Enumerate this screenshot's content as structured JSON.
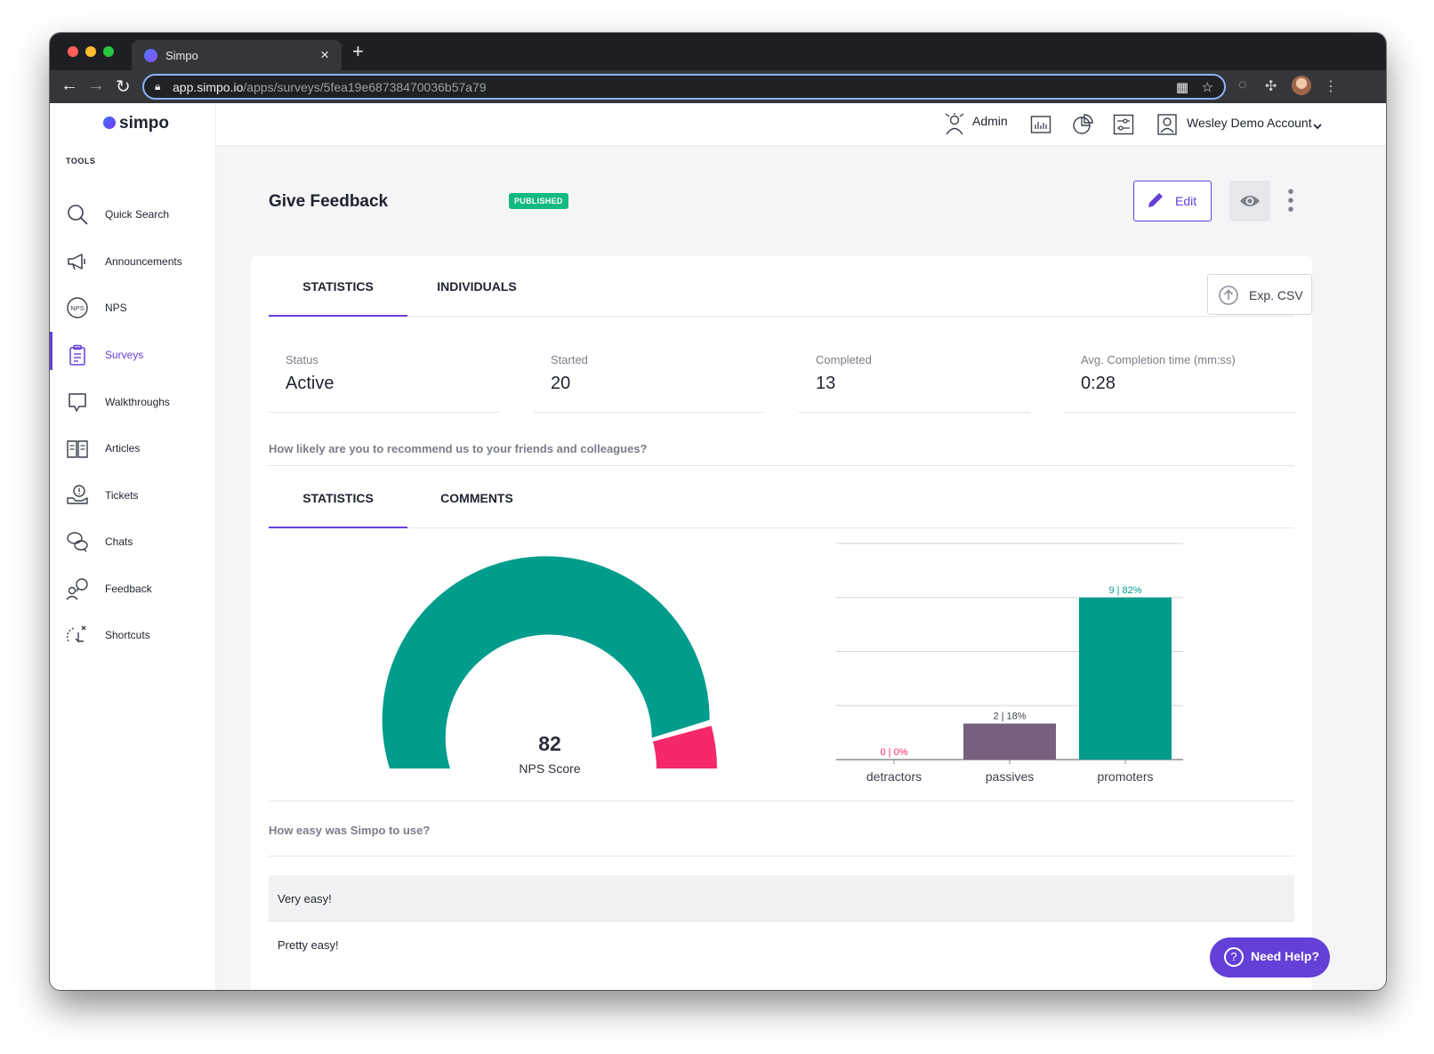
{
  "browser": {
    "tab_title": "Simpo",
    "url_host": "app.simpo.io",
    "url_path": "/apps/surveys/5fea19e68738470036b57a79"
  },
  "sidebar": {
    "logo_text": "simpo",
    "section_label": "TOOLS",
    "items": [
      {
        "label": "Quick Search",
        "icon": "search-icon"
      },
      {
        "label": "Announcements",
        "icon": "megaphone-icon"
      },
      {
        "label": "NPS",
        "icon": "nps-icon"
      },
      {
        "label": "Surveys",
        "icon": "clipboard-icon",
        "active": true
      },
      {
        "label": "Walkthroughs",
        "icon": "speech-bubble-icon"
      },
      {
        "label": "Articles",
        "icon": "book-icon"
      },
      {
        "label": "Tickets",
        "icon": "ticket-icon"
      },
      {
        "label": "Chats",
        "icon": "chat-icon"
      },
      {
        "label": "Feedback",
        "icon": "feedback-icon"
      },
      {
        "label": "Shortcuts",
        "icon": "shortcut-icon"
      }
    ]
  },
  "header": {
    "admin_label": "Admin",
    "account_label": "Wesley Demo Account"
  },
  "survey": {
    "title": "Give Feedback",
    "status_badge": "PUBLISHED",
    "edit_label": "Edit",
    "export_label": "Exp. CSV",
    "tabs": [
      "STATISTICS",
      "INDIVIDUALS"
    ],
    "stats": [
      {
        "label": "Status",
        "value": "Active"
      },
      {
        "label": "Started",
        "value": "20"
      },
      {
        "label": "Completed",
        "value": "13"
      },
      {
        "label": "Avg. Completion time (mm:ss)",
        "value": "0:28"
      }
    ]
  },
  "questions": [
    {
      "text": "How likely are you to recommend us to your friends and colleagues?",
      "tabs": [
        "STATISTICS",
        "COMMENTS"
      ]
    },
    {
      "text": "How easy was Simpo to use?",
      "answers": [
        "Very easy!",
        "Pretty easy!"
      ]
    }
  ],
  "help_label": "Need Help?",
  "colors": {
    "accent": "#6440d8",
    "promoters": "#009c8c",
    "passives": "#77607f",
    "detractors": "#f5286a",
    "badge": "#12b981"
  },
  "chart_data": [
    {
      "type": "gauge",
      "value": 82,
      "range": [
        -100,
        100
      ],
      "label": "NPS Score"
    },
    {
      "type": "bar",
      "categories": [
        "detractors",
        "passives",
        "promoters"
      ],
      "values": [
        0,
        2,
        9
      ],
      "data_labels": [
        "0 | 0%",
        "2 | 18%",
        "9 | 82%"
      ],
      "ylim": [
        0,
        12
      ],
      "grid": true
    }
  ]
}
